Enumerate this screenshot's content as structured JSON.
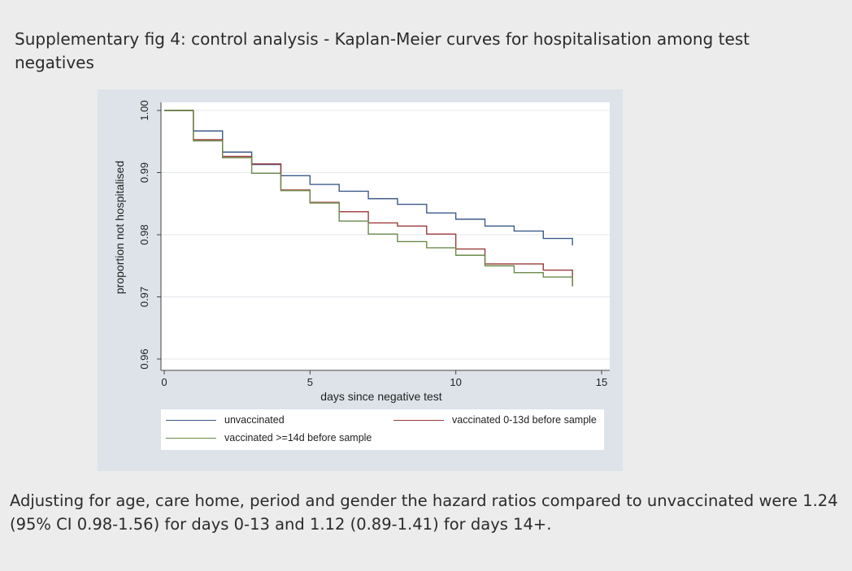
{
  "figure_title": "Supplementary fig 4: control analysis - Kaplan-Meier curves for hospitalisation among test negatives",
  "caption": "Adjusting for age, care home, period and gender the hazard ratios compared to unvaccinated were 1.24 (95% CI 0.98-1.56) for days 0-13 and 1.12 (0.89-1.41) for days 14+.",
  "chart_data": {
    "type": "line",
    "step": true,
    "title": "",
    "xlabel": "days since negative test",
    "ylabel": "proportion not hospitalised",
    "xlim": [
      0,
      15
    ],
    "ylim": [
      0.96,
      1.0
    ],
    "x_ticks": [
      0,
      5,
      10,
      15
    ],
    "x_tick_labels": [
      "0",
      "5",
      "10",
      "15"
    ],
    "y_ticks": [
      0.96,
      0.97,
      0.98,
      0.99,
      1.0
    ],
    "y_tick_labels": [
      "0.96",
      "0.97",
      "0.98",
      "0.99",
      "1.00"
    ],
    "grid": true,
    "legend_position": "bottom",
    "series": [
      {
        "name": "unvaccinated",
        "color": "#3c5a8a",
        "x": [
          0,
          1,
          2,
          3,
          4,
          5,
          6,
          7,
          8,
          9,
          10,
          11,
          12,
          13,
          14
        ],
        "y": [
          1.0,
          0.9967,
          0.9933,
          0.9913,
          0.9895,
          0.9881,
          0.987,
          0.9858,
          0.9849,
          0.9835,
          0.9825,
          0.9814,
          0.9806,
          0.9794,
          0.9788
        ]
      },
      {
        "name": "vaccinated 0-13d before sample",
        "color": "#9c3a3a",
        "x": [
          0,
          1,
          2,
          3,
          4,
          5,
          6,
          7,
          8,
          9,
          10,
          11,
          12,
          13,
          14
        ],
        "y": [
          1.0,
          0.9953,
          0.9926,
          0.9914,
          0.9872,
          0.9852,
          0.9837,
          0.9819,
          0.9814,
          0.9801,
          0.9777,
          0.9753,
          0.9753,
          0.9743,
          0.9723
        ]
      },
      {
        "name": "vaccinated >=14d before sample",
        "color": "#6b8a4a",
        "x": [
          0,
          1,
          2,
          3,
          4,
          5,
          6,
          7,
          8,
          9,
          10,
          11,
          12,
          13,
          14
        ],
        "y": [
          1.0,
          0.9951,
          0.9924,
          0.9899,
          0.9871,
          0.9851,
          0.9822,
          0.9801,
          0.9789,
          0.9779,
          0.9767,
          0.975,
          0.9739,
          0.9732,
          0.9722
        ]
      }
    ]
  }
}
